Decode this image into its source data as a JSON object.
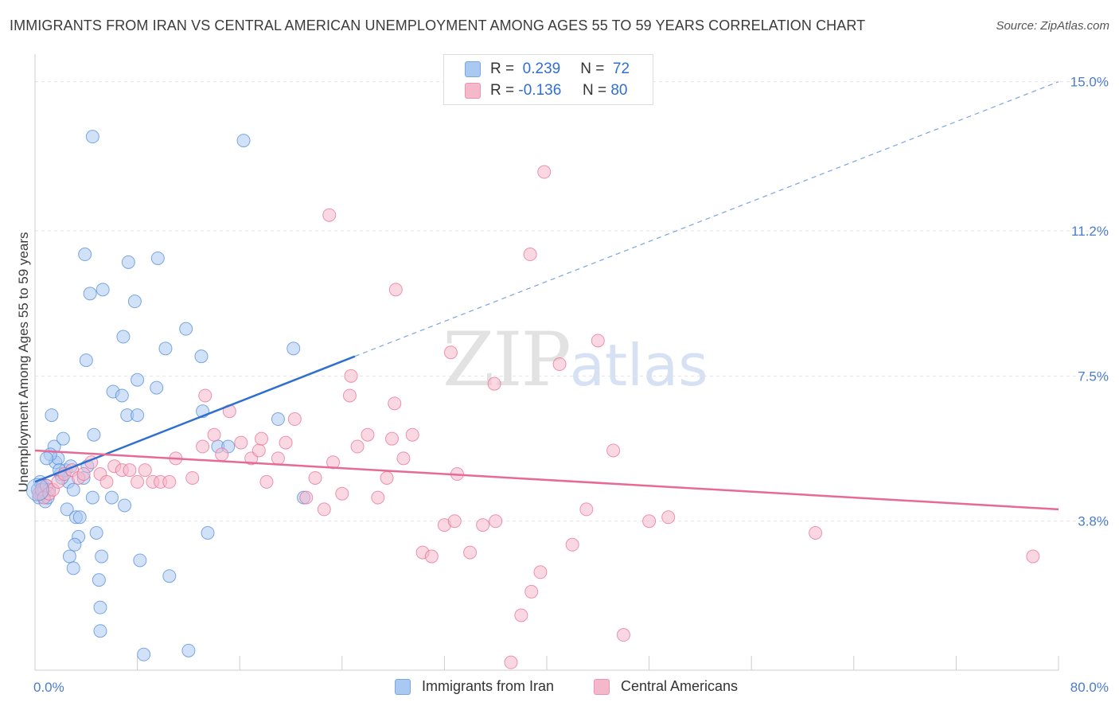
{
  "title": "IMMIGRANTS FROM IRAN VS CENTRAL AMERICAN UNEMPLOYMENT AMONG AGES 55 TO 59 YEARS CORRELATION CHART",
  "source": "Source: ZipAtlas.com",
  "watermark": {
    "zip": "ZIP",
    "atlas": "atlas"
  },
  "legend": {
    "r_label": "R =",
    "n_label": "N =",
    "rows": [
      {
        "r": "0.239",
        "n": "72",
        "color": "#a9c8f2"
      },
      {
        "r": "-0.136",
        "n": "80",
        "color": "#f5b8cb"
      }
    ]
  },
  "chart_data": {
    "type": "scatter",
    "title": "IMMIGRANTS FROM IRAN VS CENTRAL AMERICAN UNEMPLOYMENT AMONG AGES 55 TO 59 YEARS CORRELATION CHART",
    "xlabel": "",
    "ylabel": "Unemployment Among Ages 55 to 59 years",
    "xlim": [
      0,
      80
    ],
    "ylim": [
      0,
      15.5
    ],
    "x_tick_labels": [
      "0.0%",
      "80.0%"
    ],
    "y_ticks": [
      3.8,
      7.5,
      11.2,
      15.0
    ],
    "y_tick_labels": [
      "3.8%",
      "7.5%",
      "11.2%",
      "15.0%"
    ],
    "grid": true,
    "legend_position": "top-center",
    "series": [
      {
        "name": "Immigrants from Iran",
        "color": "#4a87d6",
        "fill": "#a9c8f2",
        "r": 0.239,
        "n": 72,
        "trend": {
          "x": [
            0,
            25
          ],
          "y": [
            4.8,
            8.0
          ],
          "extend_to": [
            80,
            15.0
          ],
          "style": "solid-then-dashed"
        },
        "points": [
          [
            0.2,
            4.6
          ],
          [
            0.3,
            4.4
          ],
          [
            0.4,
            4.8
          ],
          [
            0.5,
            4.5
          ],
          [
            0.6,
            4.7
          ],
          [
            0.7,
            4.6
          ],
          [
            0.8,
            4.3
          ],
          [
            0.9,
            4.7
          ],
          [
            1.0,
            4.4
          ],
          [
            1.1,
            4.6
          ],
          [
            1.3,
            6.5
          ],
          [
            1.5,
            5.7
          ],
          [
            1.6,
            5.3
          ],
          [
            1.8,
            5.4
          ],
          [
            2.0,
            5.0
          ],
          [
            2.2,
            5.9
          ],
          [
            2.4,
            5.1
          ],
          [
            2.6,
            4.8
          ],
          [
            2.8,
            5.2
          ],
          [
            3.0,
            4.6
          ],
          [
            1.2,
            5.5
          ],
          [
            1.9,
            5.1
          ],
          [
            2.5,
            4.1
          ],
          [
            3.2,
            3.9
          ],
          [
            3.4,
            3.4
          ],
          [
            3.1,
            3.2
          ],
          [
            2.7,
            2.9
          ],
          [
            3.0,
            2.6
          ],
          [
            3.5,
            3.9
          ],
          [
            4.5,
            4.4
          ],
          [
            4.8,
            3.5
          ],
          [
            5.2,
            2.9
          ],
          [
            5.0,
            2.3
          ],
          [
            5.1,
            1.6
          ],
          [
            5.1,
            1.0
          ],
          [
            6.0,
            4.4
          ],
          [
            7.0,
            4.2
          ],
          [
            8.2,
            2.8
          ],
          [
            8.5,
            0.4
          ],
          [
            10.5,
            2.4
          ],
          [
            12.0,
            0.5
          ],
          [
            13.5,
            3.5
          ],
          [
            6.1,
            7.1
          ],
          [
            6.8,
            7.0
          ],
          [
            7.2,
            6.5
          ],
          [
            4.0,
            7.9
          ],
          [
            4.6,
            6.0
          ],
          [
            4.5,
            13.6
          ],
          [
            3.9,
            10.6
          ],
          [
            5.3,
            9.7
          ],
          [
            4.3,
            9.6
          ],
          [
            7.3,
            10.4
          ],
          [
            7.8,
            9.4
          ],
          [
            9.6,
            10.5
          ],
          [
            6.9,
            8.5
          ],
          [
            10.2,
            8.2
          ],
          [
            11.8,
            8.7
          ],
          [
            13.0,
            8.0
          ],
          [
            9.5,
            7.2
          ],
          [
            8.0,
            7.4
          ],
          [
            8.0,
            6.5
          ],
          [
            13.1,
            6.6
          ],
          [
            14.3,
            5.7
          ],
          [
            15.1,
            5.7
          ],
          [
            16.3,
            13.5
          ],
          [
            19.0,
            6.4
          ],
          [
            20.2,
            8.2
          ],
          [
            21.0,
            4.4
          ],
          [
            4.1,
            5.2
          ],
          [
            3.8,
            4.9
          ],
          [
            2.1,
            4.9
          ],
          [
            0.9,
            5.4
          ]
        ]
      },
      {
        "name": "Central Americans",
        "color": "#e66a95",
        "fill": "#f5b8cb",
        "r": -0.136,
        "n": 80,
        "trend": {
          "x": [
            0,
            80
          ],
          "y": [
            5.6,
            4.1
          ],
          "style": "solid"
        },
        "points": [
          [
            0.3,
            4.5
          ],
          [
            0.5,
            4.6
          ],
          [
            0.7,
            4.4
          ],
          [
            0.9,
            4.7
          ],
          [
            1.1,
            4.5
          ],
          [
            1.4,
            4.6
          ],
          [
            1.8,
            4.8
          ],
          [
            2.3,
            5.0
          ],
          [
            2.9,
            5.1
          ],
          [
            3.4,
            4.9
          ],
          [
            3.8,
            5.0
          ],
          [
            4.4,
            5.3
          ],
          [
            5.1,
            5.0
          ],
          [
            5.6,
            4.8
          ],
          [
            6.2,
            5.2
          ],
          [
            6.8,
            5.1
          ],
          [
            7.4,
            5.1
          ],
          [
            8.0,
            4.8
          ],
          [
            8.6,
            5.1
          ],
          [
            9.2,
            4.8
          ],
          [
            9.8,
            4.8
          ],
          [
            10.5,
            4.8
          ],
          [
            11.0,
            5.4
          ],
          [
            12.3,
            4.9
          ],
          [
            13.1,
            5.7
          ],
          [
            14.0,
            6.0
          ],
          [
            14.6,
            5.5
          ],
          [
            15.2,
            6.6
          ],
          [
            16.1,
            5.8
          ],
          [
            16.9,
            5.4
          ],
          [
            17.5,
            5.6
          ],
          [
            18.1,
            4.8
          ],
          [
            19.0,
            5.4
          ],
          [
            19.6,
            5.8
          ],
          [
            20.3,
            6.4
          ],
          [
            21.2,
            4.4
          ],
          [
            21.9,
            4.9
          ],
          [
            22.6,
            4.1
          ],
          [
            23.3,
            5.3
          ],
          [
            24.0,
            4.5
          ],
          [
            24.6,
            7.0
          ],
          [
            25.2,
            5.7
          ],
          [
            26.0,
            6.0
          ],
          [
            26.8,
            4.4
          ],
          [
            27.5,
            4.9
          ],
          [
            28.1,
            6.8
          ],
          [
            28.8,
            5.4
          ],
          [
            29.5,
            6.0
          ],
          [
            30.3,
            3.0
          ],
          [
            31.0,
            2.9
          ],
          [
            32.0,
            3.7
          ],
          [
            32.8,
            3.8
          ],
          [
            34.0,
            3.0
          ],
          [
            35.0,
            3.7
          ],
          [
            36.0,
            3.8
          ],
          [
            37.2,
            0.2
          ],
          [
            38.0,
            1.4
          ],
          [
            38.8,
            2.0
          ],
          [
            39.5,
            2.5
          ],
          [
            41.0,
            7.8
          ],
          [
            42.0,
            3.2
          ],
          [
            43.1,
            4.1
          ],
          [
            44.0,
            8.4
          ],
          [
            45.2,
            5.6
          ],
          [
            46.0,
            0.9
          ],
          [
            48.0,
            3.8
          ],
          [
            49.5,
            3.9
          ],
          [
            61.0,
            3.5
          ],
          [
            78.0,
            2.9
          ],
          [
            39.8,
            12.7
          ],
          [
            23.0,
            11.6
          ],
          [
            38.7,
            10.6
          ],
          [
            28.2,
            9.7
          ],
          [
            32.5,
            8.1
          ],
          [
            24.7,
            7.5
          ],
          [
            35.9,
            7.3
          ],
          [
            33.0,
            5.0
          ],
          [
            13.3,
            7.0
          ],
          [
            27.9,
            5.9
          ],
          [
            17.7,
            5.9
          ]
        ]
      }
    ]
  }
}
